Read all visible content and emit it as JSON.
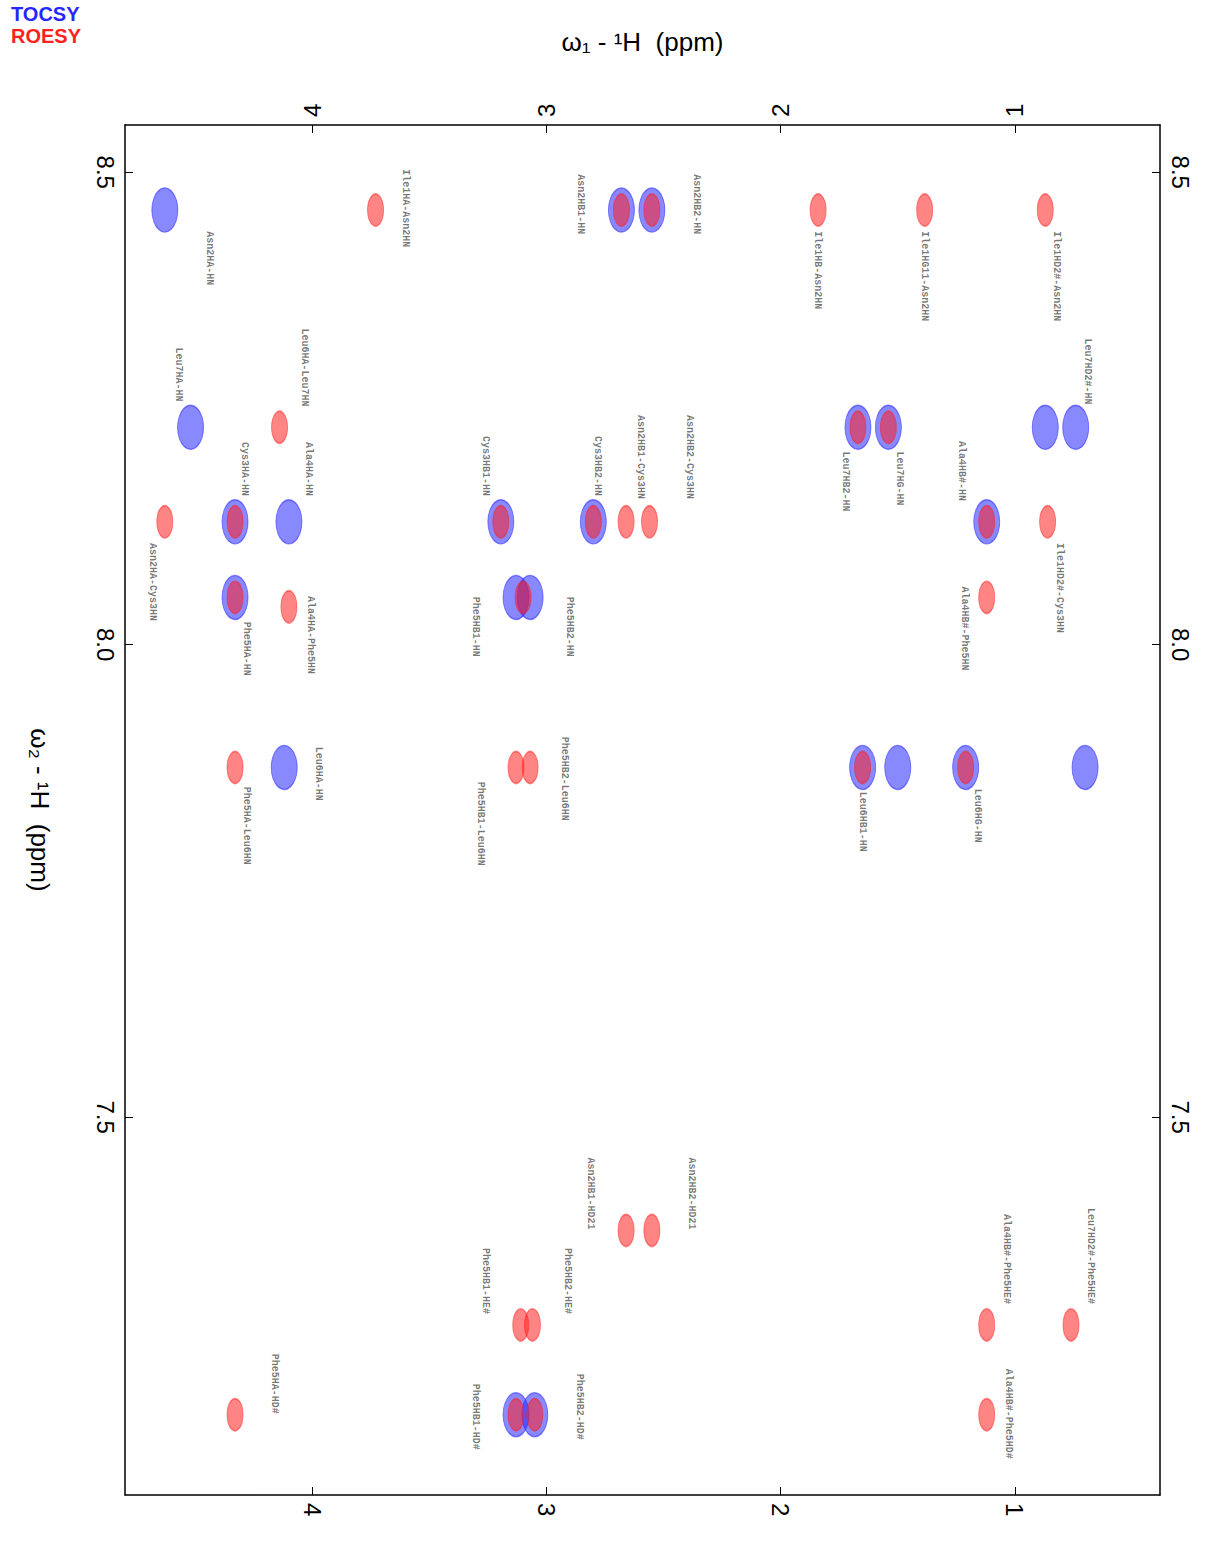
{
  "chart_data": {
    "type": "scatter",
    "xlabel": "ω₁ - ¹H  (ppm)",
    "ylabel": "ω₂ - ¹H  (ppm)",
    "xlim": [
      4.8,
      0.38
    ],
    "ylim": [
      7.1,
      8.55
    ],
    "xticks": [
      4,
      3,
      2,
      1
    ],
    "yticks": [
      7.5,
      {
        "value": 8,
        "label": "8.0"
      },
      8.5
    ],
    "grid": false,
    "legend": "upper left",
    "series": [
      {
        "name": "TOCSY",
        "color": "#2626ff",
        "x": [
          4.63,
          2.68,
          2.55,
          4.52,
          1.67,
          1.54,
          0.74,
          4.33,
          4.1,
          3.195,
          2.8,
          1.12,
          4.33,
          3.13,
          3.07,
          4.12,
          1.65,
          1.21,
          0.87,
          1.5,
          0.7,
          3.13,
          3.05
        ],
        "values": [
          8.46,
          8.46,
          8.46,
          8.23,
          8.23,
          8.23,
          8.23,
          8.13,
          8.13,
          8.13,
          8.13,
          8.13,
          8.05,
          8.05,
          8.05,
          7.87,
          7.87,
          7.87,
          8.23,
          7.87,
          7.87,
          7.185,
          7.185
        ],
        "labels": [
          "Asn2HA-HN",
          "Asn2HB1-HN",
          "Asn2HB2-HN",
          "Leu7HA-HN",
          "Leu7HB2-HN",
          "Leu7HG-HN",
          "Leu7HD2#-HN",
          "Cys3HA-HN",
          "Ala4HA-HN",
          "Cys3HB1-HN",
          "Cys3HB2-HN",
          "Ala4HB#-HN",
          "Phe5HA-HN",
          "Phe5HB1-HN",
          "Phe5HB2-HN",
          "Leu6HA-HN",
          "Leu6HB1-HN",
          "Leu6HG-HN",
          null,
          null,
          null,
          null,
          null
        ]
      },
      {
        "name": "ROESY",
        "color": "#ff2020",
        "x": [
          3.73,
          1.84,
          1.385,
          0.87,
          4.14,
          2.66,
          2.56,
          0.86,
          4.63,
          4.1,
          1.12,
          4.33,
          3.07,
          3.13,
          2.66,
          2.55,
          3.11,
          3.06,
          1.12,
          0.76,
          1.12,
          3.13,
          3.05,
          4.33,
          2.68,
          2.55,
          1.67,
          1.54,
          4.33,
          3.195,
          2.8,
          1.12,
          4.33,
          3.1,
          1.65,
          1.21
        ],
        "values": [
          8.46,
          8.46,
          8.46,
          8.46,
          8.23,
          8.13,
          8.13,
          8.13,
          8.13,
          8.04,
          8.05,
          7.87,
          7.87,
          7.87,
          7.38,
          7.38,
          7.28,
          7.28,
          7.28,
          7.28,
          7.185,
          7.185,
          7.185,
          7.185,
          8.46,
          8.46,
          8.23,
          8.23,
          8.13,
          8.13,
          8.13,
          8.13,
          8.05,
          8.05,
          7.87,
          7.87
        ],
        "labels": [
          "Ile1HA-Asn2HN",
          "Ile1HB-Asn2HN",
          "Ile1HG11-Asn2HN",
          "Ile1HD2#-Asn2HN",
          "Leu6HA-Leu7HN",
          "Asn2HB1-Cys3HN",
          "Asn2HB2-Cys3HN",
          "Ile1HD2#-Cys3HN",
          "Asn2HA-Cys3HN",
          "Ala4HA-Phe5HN",
          "Ala4HB#-Phe5HN",
          "Phe5HA-Leu6HN",
          "Phe5HB2-Leu6HN",
          "Phe5HB1-Leu6HN",
          "Asn2HB1-HD21",
          "Asn2HB2-HD21",
          "Phe5HB1-HE#",
          "Phe5HB2-HE#",
          "Ala4HB#-Phe5HE#",
          "Leu7HD2#-Phe5HE#",
          "Ala4HB#-Phe5HD#",
          "Phe5HB1-HD#",
          "Phe5HB2-HD#",
          "Phe5HA-HD#",
          null,
          null,
          null,
          null,
          null,
          null,
          null,
          null,
          null,
          null,
          null,
          null
        ]
      }
    ]
  }
}
